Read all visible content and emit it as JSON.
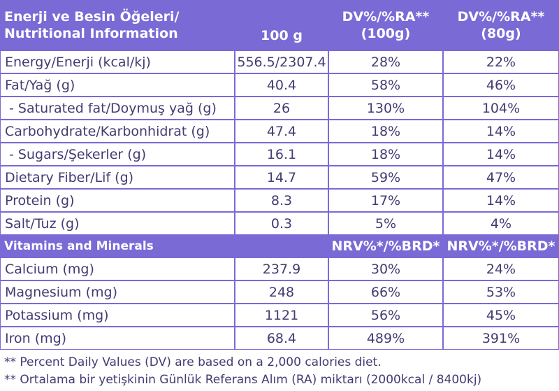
{
  "header": {
    "title_tr": "Enerji ve Besin Öğeleri/",
    "title_en": "Nutritional Information",
    "col_100g": "100 g",
    "col_dv100_line1": "DV%/%RA**",
    "col_dv100_line2": "(100g)",
    "col_dv80_line1": "DV%/%RA**",
    "col_dv80_line2": "(80g)"
  },
  "nutrients": [
    {
      "label": "Energy/Enerji (kcal/kj)",
      "per100": "556.5/2307.4",
      "dv100": "28%",
      "dv80": "22%"
    },
    {
      "label": "Fat/Yağ (g)",
      "per100": "40.4",
      "dv100": "58%",
      "dv80": "46%"
    },
    {
      "label": " - Saturated fat/Doymuş yağ (g)",
      "per100": "26",
      "dv100": "130%",
      "dv80": "104%"
    },
    {
      "label": "Carbohydrate/Karbonhidrat (g)",
      "per100": "47.4",
      "dv100": "18%",
      "dv80": "14%"
    },
    {
      "label": " - Sugars/Şekerler (g)",
      "per100": "16.1",
      "dv100": "18%",
      "dv80": "14%"
    },
    {
      "label": "Dietary Fiber/Lif (g)",
      "per100": "14.7",
      "dv100": "59%",
      "dv80": "47%"
    },
    {
      "label": "Protein (g)",
      "per100": "8.3",
      "dv100": "17%",
      "dv80": "14%"
    },
    {
      "label": "Salt/Tuz (g)",
      "per100": "0.3",
      "dv100": "5%",
      "dv80": "4%"
    }
  ],
  "minerals_header": {
    "label": "Vitamins and Minerals",
    "col_nrv100": "NRV%*/%BRD*",
    "col_nrv80": "NRV%*/%BRD*"
  },
  "minerals": [
    {
      "label": "Calcium (mg)",
      "per100": "237.9",
      "nrv100": "30%",
      "nrv80": "24%"
    },
    {
      "label": "Magnesium (mg)",
      "per100": "248",
      "nrv100": "66%",
      "nrv80": "53%"
    },
    {
      "label": "Potassium (mg)",
      "per100": "1121",
      "nrv100": "56%",
      "nrv80": "45%"
    },
    {
      "label": "Iron (mg)",
      "per100": "68.4",
      "nrv100": "489%",
      "nrv80": "391%"
    }
  ],
  "footnotes": [
    "** Percent Daily Values (DV) are based on a 2,000 calories diet.",
    "** Ortalama bir yetişkinin Günlük Referans Alım (RA) miktarı (2000kcal / 8400kj)"
  ],
  "colors": {
    "accent": "#7a6ad6",
    "text": "#433b72"
  }
}
